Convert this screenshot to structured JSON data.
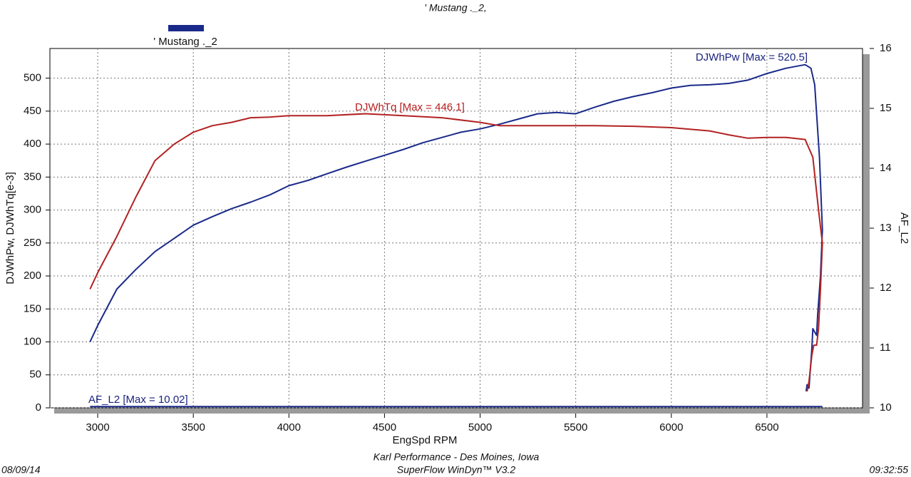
{
  "chart_data": {
    "type": "line",
    "title": "' Mustang ._2,",
    "x_label": "EngSpd RPM",
    "y_label": "DJWhPw, DJWhTq[e-3]",
    "y2_label": "AF_L2",
    "xlim": [
      2750,
      7000
    ],
    "ylim": [
      0,
      545
    ],
    "y2lim": [
      10,
      16
    ],
    "xticks": [
      3000,
      3500,
      4000,
      4500,
      5000,
      5500,
      6000,
      6500
    ],
    "yticks": [
      0,
      50,
      100,
      150,
      200,
      250,
      300,
      350,
      400,
      450,
      500
    ],
    "y2ticks": [
      10,
      11,
      12,
      13,
      14,
      15,
      16
    ],
    "grid": true,
    "legend": "top-left",
    "annotations": [
      "DJWhPw [Max = 520.5]",
      "DJWhTq [Max = 446.1]",
      "AF_L2  [Max = 10.02]"
    ],
    "footer": {
      "date": "08/09/14",
      "shop": "Karl Performance - Des Moines, Iowa",
      "software": "SuperFlow WinDyn™  V3.2",
      "time": "09:32:55"
    },
    "series": [
      {
        "name": "' Mustang ._2",
        "color": "#1a2a8a",
        "x": [
          2960,
          3000,
          3100,
          3200,
          3300,
          3400,
          3500,
          3600,
          3700,
          3800,
          3900,
          4000,
          4100,
          4200,
          4300,
          4400,
          4500,
          4600,
          4700,
          4800,
          4900,
          5000,
          5100,
          5200,
          5300,
          5400,
          5500,
          5600,
          5700,
          5800,
          5900,
          6000,
          6100,
          6200,
          6300,
          6400,
          6500,
          6600,
          6700,
          6730,
          6750,
          6775,
          6790,
          6780,
          6765,
          6760,
          6750,
          6740,
          6735,
          6720,
          6710,
          6705
        ],
        "y": [
          100,
          125,
          180,
          210,
          237,
          257,
          277,
          290,
          302,
          312,
          323,
          337,
          345,
          355,
          365,
          374,
          383,
          392,
          402,
          410,
          418,
          423,
          430,
          438,
          446,
          448,
          446,
          456,
          465,
          472,
          478,
          485,
          489,
          490,
          492,
          497,
          507,
          515,
          520.5,
          515,
          490,
          380,
          270,
          200,
          140,
          110,
          115,
          120,
          90,
          30,
          35,
          25
        ]
      },
      {
        "name": "DJWhTq",
        "color": "#b22222",
        "x": [
          2960,
          3000,
          3100,
          3200,
          3300,
          3400,
          3500,
          3600,
          3700,
          3800,
          3900,
          4000,
          4200,
          4400,
          4600,
          4800,
          5000,
          5100,
          5200,
          5400,
          5600,
          5800,
          6000,
          6200,
          6300,
          6400,
          6500,
          6600,
          6700,
          6740,
          6770,
          6790,
          6780,
          6770,
          6760,
          6745,
          6735,
          6720,
          6710
        ],
        "y": [
          180,
          205,
          260,
          320,
          375,
          400,
          418,
          428,
          433,
          440,
          441,
          443,
          443,
          446.1,
          443,
          440,
          433,
          428,
          428,
          428,
          428,
          427,
          425,
          420,
          414,
          409,
          410,
          410,
          407,
          380,
          300,
          250,
          180,
          120,
          95,
          95,
          80,
          40,
          25
        ]
      },
      {
        "name": "AF_L2",
        "color": "#1a2a8a",
        "axis": "y2",
        "x": [
          2960,
          6790
        ],
        "y": [
          10.02,
          10.02
        ]
      }
    ]
  }
}
